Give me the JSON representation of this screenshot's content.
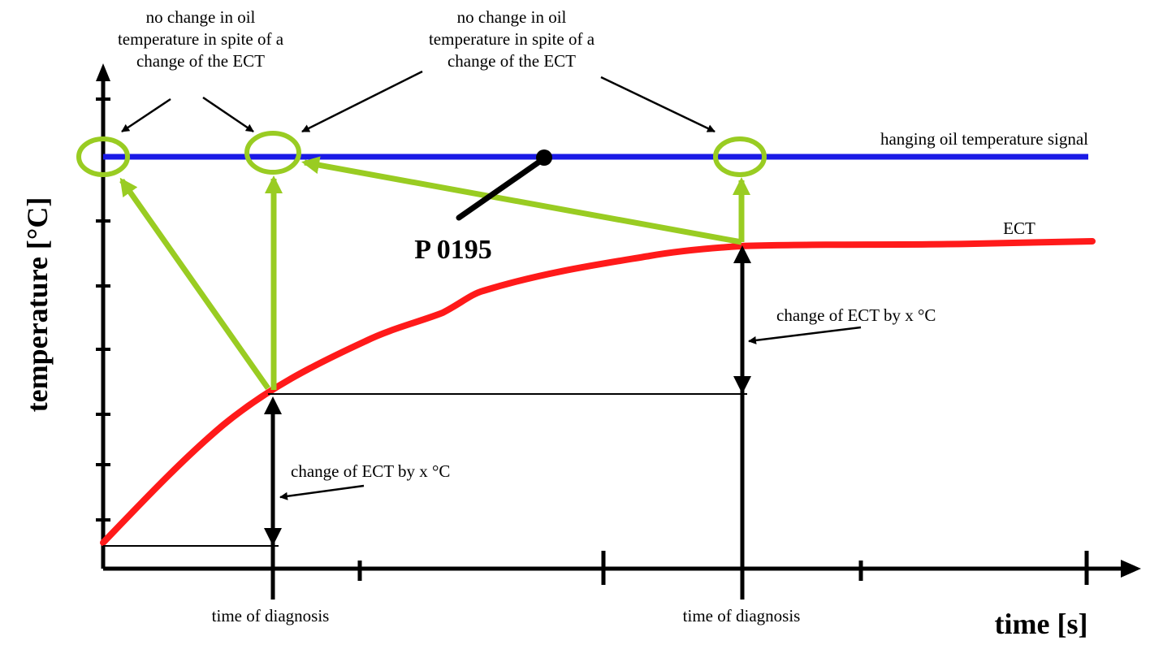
{
  "axes": {
    "y_label": "temperature [°C]",
    "x_label": "time [s]"
  },
  "annotations": {
    "note_left": {
      "line1": "no change in oil",
      "line2": "temperature in spite of a",
      "line3": "change of the ECT"
    },
    "note_right": {
      "line1": "no change in oil",
      "line2": "temperature in spite of a",
      "line3": "change of the ECT"
    },
    "oil_signal": "hanging oil temperature signal",
    "ect_curve": "ECT",
    "fault_code": "P 0195",
    "change_first": "change of ECT by x °C",
    "change_second": "change of ECT by x °C",
    "diag_time_1": "time of diagnosis",
    "diag_time_2": "time of diagnosis"
  },
  "colors": {
    "oil_line": "#1a1ae6",
    "ect_line": "#ff1a1a",
    "highlight": "#99cc22",
    "ink": "#000000"
  }
}
